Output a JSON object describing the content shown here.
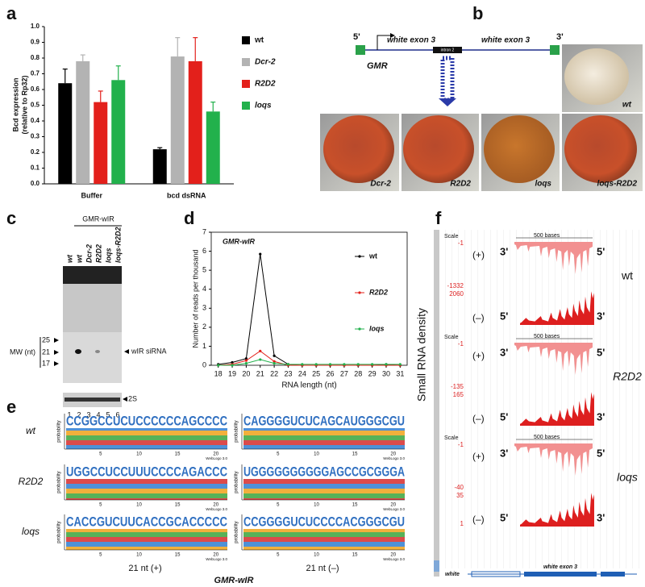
{
  "labels": [
    "a",
    "b",
    "c",
    "d",
    "e",
    "f"
  ],
  "chart_data": [
    {
      "type": "bar",
      "ylabel": [
        "Bcd expression",
        "(relative to Rp32)"
      ],
      "categories": [
        "Buffer",
        "bcd dsRNA"
      ],
      "series": [
        {
          "name": "wt",
          "color": "#000000",
          "values": [
            0.64,
            0.22
          ],
          "errors": [
            0.09,
            0.01
          ]
        },
        {
          "name": "Dcr-2",
          "color": "#b3b3b3",
          "values": [
            0.78,
            0.81
          ],
          "errors": [
            0.04,
            0.12
          ]
        },
        {
          "name": "R2D2",
          "color": "#e3201b",
          "values": [
            0.52,
            0.78
          ],
          "errors": [
            0.07,
            0.15
          ]
        },
        {
          "name": "loqs",
          "color": "#22b14c",
          "values": [
            0.66,
            0.46
          ],
          "errors": [
            0.09,
            0.06
          ]
        }
      ],
      "ylim": [
        0,
        1
      ],
      "yticks": [
        {
          "value": 0,
          "label": "0.0"
        },
        0.1,
        0.2,
        0.3,
        0.4,
        0.5,
        0.6,
        0.7,
        0.8,
        0.9,
        {
          "value": 1,
          "label": "1.0"
        }
      ],
      "legend": "right"
    },
    {
      "type": "line",
      "title": "GMR-wIR",
      "xlabel": "RNA length (nt)",
      "ylabel": "Number of reads per thousand",
      "x": [
        18,
        19,
        20,
        21,
        22,
        23,
        24,
        25,
        26,
        27,
        28,
        29,
        30,
        31
      ],
      "series": [
        {
          "name": "wt",
          "color": "#000000",
          "values": [
            0.05,
            0.15,
            0.35,
            5.85,
            0.5,
            0.05,
            0,
            0,
            0,
            0,
            0,
            0,
            0.05,
            0
          ]
        },
        {
          "name": "R2D2",
          "color": "#e3201b",
          "values": [
            0,
            0.05,
            0.25,
            0.75,
            0.2,
            0,
            0,
            0,
            0,
            0,
            0,
            0,
            0,
            0
          ]
        },
        {
          "name": "loqs",
          "color": "#22b14c",
          "values": [
            0,
            0,
            0.1,
            0.3,
            0.1,
            0.05,
            0.05,
            0.05,
            0.05,
            0.05,
            0.05,
            0.05,
            0.05,
            0.05
          ]
        }
      ],
      "xlim": [
        17.5,
        31.5
      ],
      "xticks": [
        18,
        19,
        20,
        21,
        22,
        23,
        24,
        25,
        26,
        27,
        28,
        29,
        30,
        31
      ],
      "ylim": [
        0,
        7
      ],
      "yticks": [
        0,
        1,
        2,
        3,
        4,
        5,
        6,
        7
      ],
      "legend": "right"
    }
  ],
  "diagram": {
    "five_prime": "5'",
    "three_prime": "3'",
    "exon_left": "white exon 3",
    "exon_right": "white exon 3",
    "promoter": "GMR",
    "intron": "intron 2",
    "eye_top": "wt",
    "eyes": [
      "Dcr-2",
      "R2D2",
      "loqs",
      "loqs-R2D2"
    ]
  },
  "gel": {
    "group": "GMR-wIR",
    "lanes": [
      "wt",
      "wt",
      "Dcr-2",
      "R2D2",
      "loqs",
      "loqs-R2D2"
    ],
    "markers": [
      "25",
      "21",
      "17"
    ],
    "marker_title": "MW (nt)",
    "band": "wIR siRNA",
    "loading": "2S",
    "lane_numbers": [
      "1",
      "2",
      "3",
      "4",
      "5",
      "6"
    ]
  },
  "logos": {
    "rows": [
      "wt",
      "R2D2",
      "loqs"
    ],
    "sequences": [
      [
        "CCGGCCUCUCCCCCCAGCCCC",
        "CAGGGGUCUCAGCAUGGGCGU"
      ],
      [
        "UGGCCUCCUUUCCCCAGACCC",
        "UGGGGGGGGGGAGCCGCGGGA"
      ],
      [
        "CACCGUCUUCACCGCACCCCC",
        "CCGGGGUCUCCCCACGGGCGU"
      ]
    ],
    "ylabel": "probability",
    "xticks": [
      "5",
      "10",
      "15",
      "20"
    ],
    "credit": "WebLogo 3.0",
    "columns": [
      "21 nt (+)",
      "21 nt (–)"
    ],
    "caption": "GMR-wIR"
  },
  "tracks": {
    "ylabel": "Small RNA density",
    "scale": "Scale",
    "scale_bar": "500 bases",
    "plus": "(+)",
    "minus": "(–)",
    "end3": "3'",
    "end5": "5'",
    "samples": [
      {
        "name": "wt",
        "axis": [
          "-1",
          "-1332",
          "2060"
        ]
      },
      {
        "name": "R2D2",
        "axis": [
          "-1",
          "-135",
          "165"
        ]
      },
      {
        "name": "loqs",
        "axis": [
          "-1",
          "-40",
          "35"
        ]
      }
    ],
    "bottom": "1",
    "gene": "white",
    "exon": "white exon 3"
  }
}
